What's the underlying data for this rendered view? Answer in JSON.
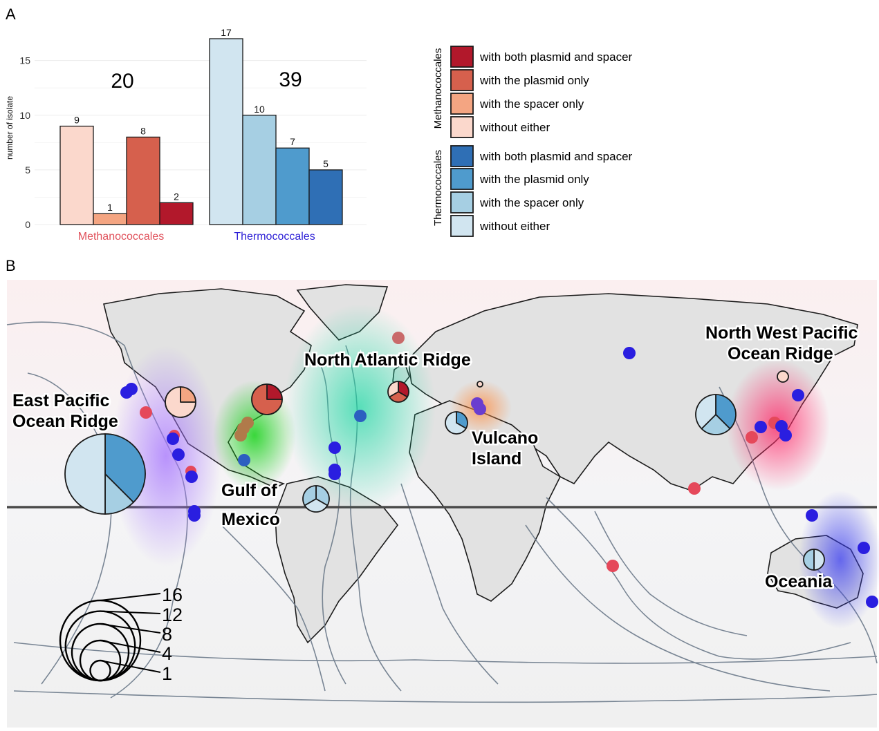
{
  "panel_a_label": "A",
  "panel_b_label": "B",
  "chart_data": [
    {
      "type": "bar",
      "ylabel": "number of isolate",
      "ylim": [
        0,
        17
      ],
      "yticks": [
        0,
        5,
        10,
        15
      ],
      "grid": true,
      "groups": [
        {
          "name": "Methanococcales",
          "name_color": "#e0505a",
          "total": "20",
          "bars": [
            {
              "category": "without either",
              "value": 9,
              "color": "#fbd8cc"
            },
            {
              "category": "with the spacer only",
              "value": 1,
              "color": "#f4a582"
            },
            {
              "category": "with the plasmid only",
              "value": 8,
              "color": "#d6604d"
            },
            {
              "category": "with both plasmid and spacer",
              "value": 2,
              "color": "#b2182b"
            }
          ]
        },
        {
          "name": "Thermococcales",
          "name_color": "#2c1fd6",
          "total": "39",
          "bars": [
            {
              "category": "without either",
              "value": 17,
              "color": "#d1e5f0"
            },
            {
              "category": "with the spacer only",
              "value": 10,
              "color": "#a6cfe3"
            },
            {
              "category": "with the plasmid only",
              "value": 7,
              "color": "#4f9bcd"
            },
            {
              "category": "with both plasmid and spacer",
              "value": 5,
              "color": "#2f6fb5"
            }
          ]
        }
      ],
      "legend": {
        "placement": "right",
        "groups": [
          {
            "title": "Methanococcales",
            "items": [
              {
                "label": "with both plasmid and spacer",
                "color": "#b2182b"
              },
              {
                "label": "with the plasmid only",
                "color": "#d6604d"
              },
              {
                "label": "with the spacer only",
                "color": "#f4a582"
              },
              {
                "label": "without either",
                "color": "#fbd8cc"
              }
            ]
          },
          {
            "title": "Thermococcales",
            "items": [
              {
                "label": "with both plasmid and spacer",
                "color": "#2f6fb5"
              },
              {
                "label": "with the plasmid only",
                "color": "#4f9bcd"
              },
              {
                "label": "with the spacer only",
                "color": "#a6cfe3"
              },
              {
                "label": "without either",
                "color": "#d1e5f0"
              }
            ]
          }
        ]
      }
    },
    {
      "type": "map",
      "region_labels": [
        "East Pacific\nOcean Ridge",
        "Gulf of\nMexico",
        "North Atlantic Ridge",
        "Vulcano\nIsland",
        "North West Pacific\nOcean Ridge",
        "Oceania"
      ],
      "size_legend": {
        "values": [
          16,
          12,
          8,
          4,
          1
        ]
      },
      "pies": [
        {
          "region": "East Pacific (Thermococcales)",
          "total": 16,
          "values": [
            6,
            2,
            8
          ],
          "colors": [
            "#4f9bcd",
            "#a6cfe3",
            "#d1e5f0"
          ]
        },
        {
          "region": "East Pacific (Methanococcales)",
          "total": 4,
          "values": [
            1,
            3
          ],
          "colors": [
            "#f4a582",
            "#fbd8cc"
          ]
        },
        {
          "region": "Gulf of Mexico (Methanococcales)",
          "total": 4,
          "values": [
            1,
            3
          ],
          "colors": [
            "#b2182b",
            "#d6604d"
          ]
        },
        {
          "region": "Gulf of Mexico (Thermococcales)",
          "total": 3,
          "values": [
            1,
            1,
            1
          ],
          "colors": [
            "#a6cfe3",
            "#d1e5f0",
            "#a6cfe3"
          ]
        },
        {
          "region": "North Atlantic (Methanococcales)",
          "total": 3,
          "values": [
            1,
            1,
            1
          ],
          "colors": [
            "#b2182b",
            "#d6604d",
            "#fbd8cc"
          ]
        },
        {
          "region": "Vulcano Island (Thermococcales)",
          "total": 3,
          "values": [
            1,
            2
          ],
          "colors": [
            "#4f9bcd",
            "#d1e5f0"
          ]
        },
        {
          "region": "Vulcano Island (Methanococcales)",
          "total": 1,
          "values": [
            1
          ],
          "colors": [
            "#fbd8cc"
          ]
        },
        {
          "region": "North West Pacific (Methanococcales)",
          "total": 1,
          "values": [
            1
          ],
          "colors": [
            "#fbd8cc"
          ]
        },
        {
          "region": "North West Pacific (Thermococcales)",
          "total": 8,
          "values": [
            3,
            2,
            3
          ],
          "colors": [
            "#4f9bcd",
            "#a6cfe3",
            "#d1e5f0"
          ]
        },
        {
          "region": "Oceania (Thermococcales)",
          "total": 2,
          "values": [
            1,
            1
          ],
          "colors": [
            "#d1e5f0",
            "#a6cfe3"
          ]
        }
      ],
      "colors": {
        "thermo_point": "#2a1ee0",
        "methano_point": "#e5485a",
        "equator": "#4a4a4a",
        "contour": "#6c7a8a"
      }
    }
  ]
}
